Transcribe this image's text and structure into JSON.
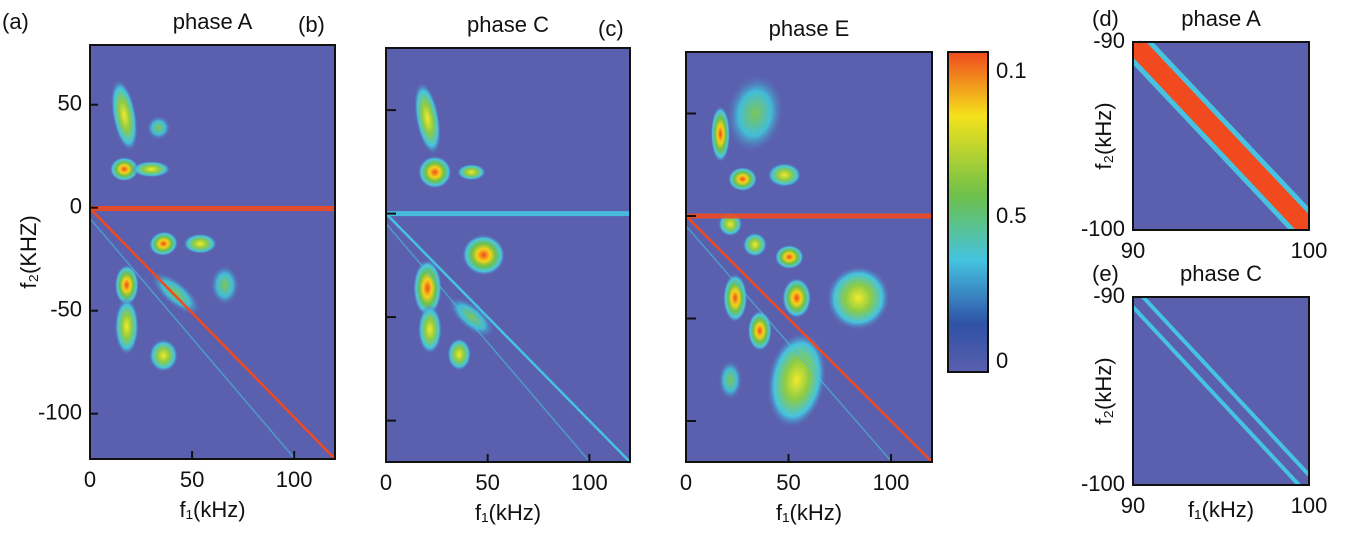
{
  "chart_data": [
    {
      "type": "heatmap",
      "panel_label": "(a)",
      "title": "phase A",
      "xlabel": "f₁(kHz)",
      "ylabel": "f₂(KHZ)",
      "xlim": [
        0,
        120
      ],
      "ylim": [
        -122,
        79
      ],
      "xticks": [
        0,
        50,
        100
      ],
      "yticks": [
        50,
        0,
        -50,
        -100
      ]
    },
    {
      "type": "heatmap",
      "panel_label": "(b)",
      "title": "phase C",
      "xlabel": "f₁(kHz)",
      "xlim": [
        0,
        120
      ],
      "ylim": [
        -120,
        80
      ],
      "xticks": [
        0,
        50,
        100
      ],
      "ytick_marks": [
        50,
        0,
        -50,
        -100
      ]
    },
    {
      "type": "heatmap",
      "panel_label": "(c)",
      "title": "phase E",
      "xlabel": "f₁(kHz)",
      "xlim": [
        0,
        120
      ],
      "ylim": [
        -120,
        80
      ],
      "xticks": [
        0,
        50,
        100
      ],
      "ytick_marks": [
        50,
        0,
        -50,
        -100
      ],
      "colorbar_labels": [
        "0.1",
        "0.5",
        "0"
      ]
    },
    {
      "type": "heatmap",
      "panel_label": "(d)",
      "title": "phase A",
      "ylabel": "f₂(kHz)",
      "xlim": [
        90,
        100
      ],
      "ylim": [
        -100,
        -90
      ],
      "xticks": [
        90,
        100
      ],
      "yticks": [
        -90,
        -100
      ]
    },
    {
      "type": "heatmap",
      "panel_label": "(e)",
      "title": "phase C",
      "xlabel": "f₁(kHz)",
      "ylabel": "f₂(kHz)",
      "xlim": [
        90,
        100
      ],
      "ylim": [
        -100,
        -90
      ],
      "xticks": [
        90,
        100
      ],
      "yticks": [
        -90,
        -100
      ]
    }
  ]
}
